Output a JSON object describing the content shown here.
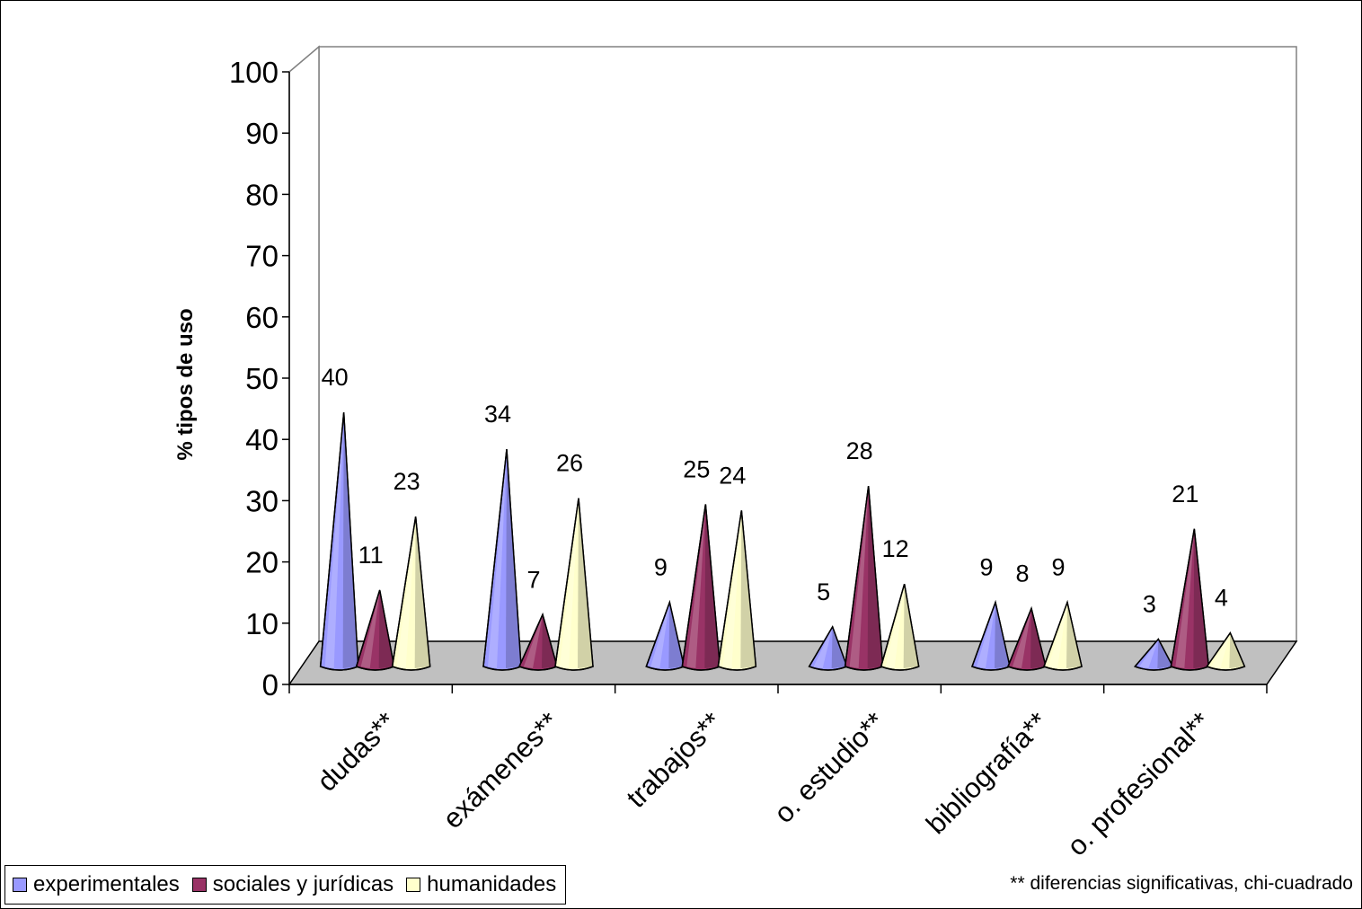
{
  "chart_data": {
    "type": "bar",
    "bar_shape": "cone-3d",
    "categories": [
      "dudas**",
      "exámenes**",
      "trabajos**",
      "o. estudio**",
      "bibliografía**",
      "o. profesional**"
    ],
    "series": [
      {
        "name": "experimentales",
        "color": "#9999ff",
        "values": [
          40,
          34,
          9,
          5,
          9,
          3
        ]
      },
      {
        "name": "sociales y jurídicas",
        "color": "#993366",
        "values": [
          11,
          7,
          25,
          28,
          8,
          21
        ]
      },
      {
        "name": "humanidades",
        "color": "#ffffcc",
        "values": [
          23,
          26,
          24,
          12,
          9,
          4
        ]
      }
    ],
    "ylabel": "% tipos de uso",
    "ylim": [
      0,
      100
    ],
    "yticks": [
      0,
      10,
      20,
      30,
      40,
      50,
      60,
      70,
      80,
      90,
      100
    ],
    "legend_position": "bottom-left",
    "floor_color": "#c0c0c0",
    "footnote": "** diferencias significativas, chi-cuadrado"
  }
}
